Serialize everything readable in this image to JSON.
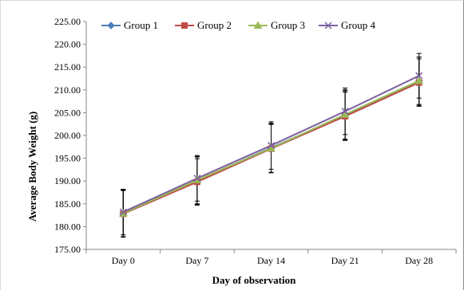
{
  "chart_data": {
    "type": "line",
    "title": "",
    "xlabel": "Day of observation",
    "ylabel": "Average Body Weight (g)",
    "categories": [
      "Day 0",
      "Day 7",
      "Day 14",
      "Day 21",
      "Day 28"
    ],
    "ylim": [
      175,
      225
    ],
    "yticks": [
      "175.00",
      "180.00",
      "185.00",
      "190.00",
      "195.00",
      "200.00",
      "205.00",
      "210.00",
      "215.00",
      "220.00",
      "225.00"
    ],
    "grid": false,
    "legend_position": "top",
    "error_bars": true,
    "series": [
      {
        "name": "Group 1",
        "color": "#4a7ebb",
        "marker": "diamond",
        "values": [
          182.9,
          190.1,
          197.3,
          204.4,
          211.9
        ],
        "error": [
          5.2,
          5.2,
          5.4,
          5.4,
          5.3
        ]
      },
      {
        "name": "Group 2",
        "color": "#be4b48",
        "marker": "square",
        "values": [
          182.8,
          189.8,
          197.1,
          204.2,
          211.6
        ],
        "error": [
          5.1,
          5.1,
          5.3,
          5.3,
          5.2
        ]
      },
      {
        "name": "Group 3",
        "color": "#98b954",
        "marker": "triangle",
        "values": [
          182.9,
          190.2,
          197.2,
          204.6,
          212.0
        ],
        "error": [
          5.1,
          5.2,
          5.3,
          5.4,
          5.2
        ]
      },
      {
        "name": "Group 4",
        "color": "#7d60a0",
        "marker": "x",
        "values": [
          183.2,
          190.6,
          197.8,
          205.3,
          213.1
        ],
        "error": [
          5.0,
          5.0,
          5.2,
          5.1,
          4.9
        ]
      }
    ]
  }
}
